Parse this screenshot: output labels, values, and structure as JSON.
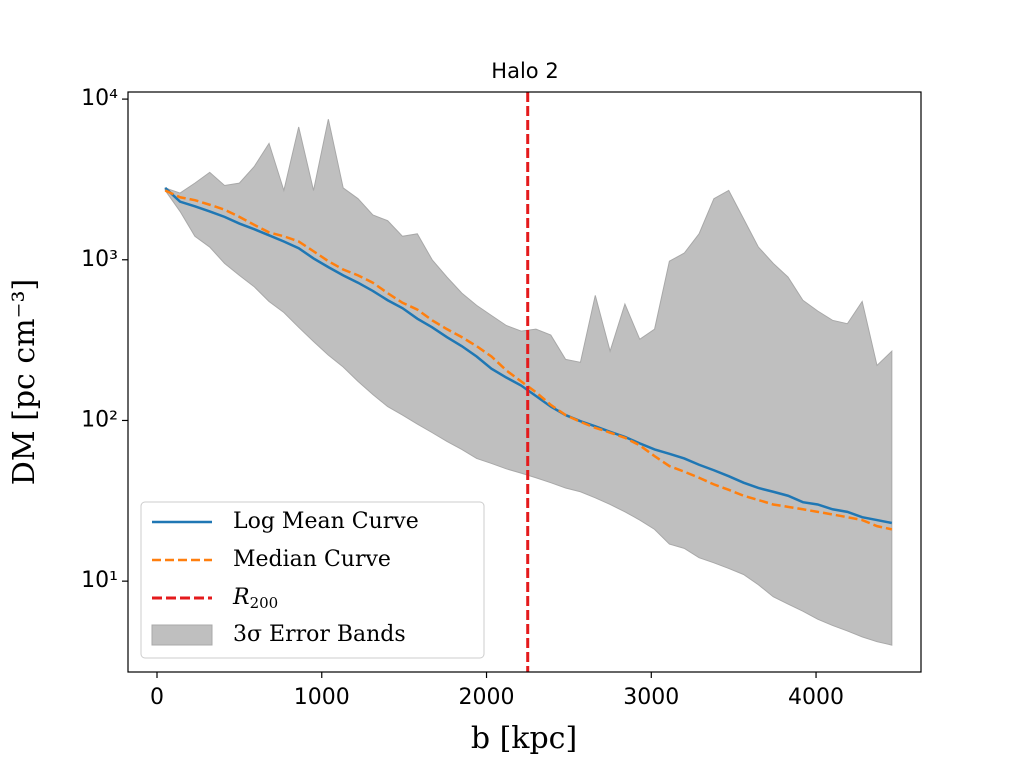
{
  "chart_data": {
    "type": "line",
    "title": "Halo 2",
    "x_label": "b [kpc]",
    "y_label": "DM [pc cm⁻³]",
    "log_y": true,
    "xlim": [
      -176,
      4637
    ],
    "ylim": [
      2.72,
      11070
    ],
    "xticks": [
      0,
      1000,
      2000,
      3000,
      4000
    ],
    "yticks": [
      {
        "value": 10,
        "label": "10¹"
      },
      {
        "value": 100,
        "label": "10²"
      },
      {
        "value": 1000,
        "label": "10³"
      },
      {
        "value": 10000,
        "label": "10⁴"
      }
    ],
    "legend": "lower left",
    "x": [
      50,
      140,
      230,
      320,
      410,
      500,
      590,
      680,
      770,
      860,
      950,
      1040,
      1130,
      1220,
      1310,
      1400,
      1490,
      1580,
      1670,
      1760,
      1850,
      1940,
      2030,
      2120,
      2210,
      2300,
      2390,
      2480,
      2570,
      2660,
      2750,
      2840,
      2930,
      3020,
      3110,
      3200,
      3290,
      3380,
      3470,
      3560,
      3650,
      3740,
      3830,
      3920,
      4010,
      4100,
      4190,
      4280,
      4370,
      4460
    ],
    "series": [
      {
        "name": "Log Mean Curve",
        "color": "#1f77b4",
        "dashed": false,
        "values": [
          2800,
          2300,
          2150,
          2000,
          1850,
          1680,
          1550,
          1420,
          1300,
          1180,
          1020,
          900,
          800,
          720,
          640,
          560,
          500,
          430,
          380,
          330,
          290,
          250,
          210,
          185,
          165,
          142,
          122,
          108,
          99,
          92,
          85,
          79,
          72,
          66,
          62,
          58,
          53,
          49,
          45,
          41,
          38,
          36,
          34,
          31,
          30,
          28,
          27,
          25,
          24,
          23
        ]
      },
      {
        "name": "Median Curve",
        "color": "#ff7f0e",
        "dashed": true,
        "values": [
          2700,
          2450,
          2350,
          2200,
          2050,
          1850,
          1650,
          1480,
          1400,
          1300,
          1130,
          980,
          870,
          800,
          720,
          620,
          540,
          490,
          420,
          370,
          330,
          290,
          250,
          205,
          175,
          150,
          125,
          108,
          98,
          90,
          84,
          78,
          70,
          60,
          52,
          48,
          44,
          40,
          37,
          34,
          32,
          30,
          29,
          28,
          27,
          26,
          25,
          24,
          22,
          21
        ]
      }
    ],
    "band": {
      "name": "3σ Error Bands",
      "color": "#bfbfbf",
      "upper": [
        2800,
        2600,
        3000,
        3500,
        2900,
        3000,
        3800,
        5300,
        2700,
        6700,
        2700,
        7500,
        2800,
        2400,
        1900,
        1750,
        1400,
        1450,
        1000,
        780,
        620,
        520,
        450,
        390,
        360,
        370,
        340,
        240,
        230,
        600,
        270,
        530,
        320,
        370,
        980,
        1100,
        1450,
        2400,
        2700,
        1800,
        1200,
        950,
        780,
        560,
        480,
        420,
        400,
        550,
        220,
        270
      ],
      "lower": [
        2700,
        2000,
        1400,
        1200,
        950,
        800,
        680,
        550,
        470,
        380,
        310,
        255,
        215,
        175,
        145,
        122,
        108,
        95,
        84,
        74,
        66,
        58,
        54,
        50,
        47,
        44,
        41,
        38,
        36,
        33,
        30,
        27,
        24,
        21,
        17,
        16,
        14,
        13,
        12,
        11,
        9.5,
        8,
        7.2,
        6.5,
        5.8,
        5.3,
        4.9,
        4.5,
        4.2,
        4.0
      ]
    },
    "vline": {
      "name": "R",
      "name_sub": "200",
      "x": 2250,
      "color": "#e41a1c"
    }
  }
}
